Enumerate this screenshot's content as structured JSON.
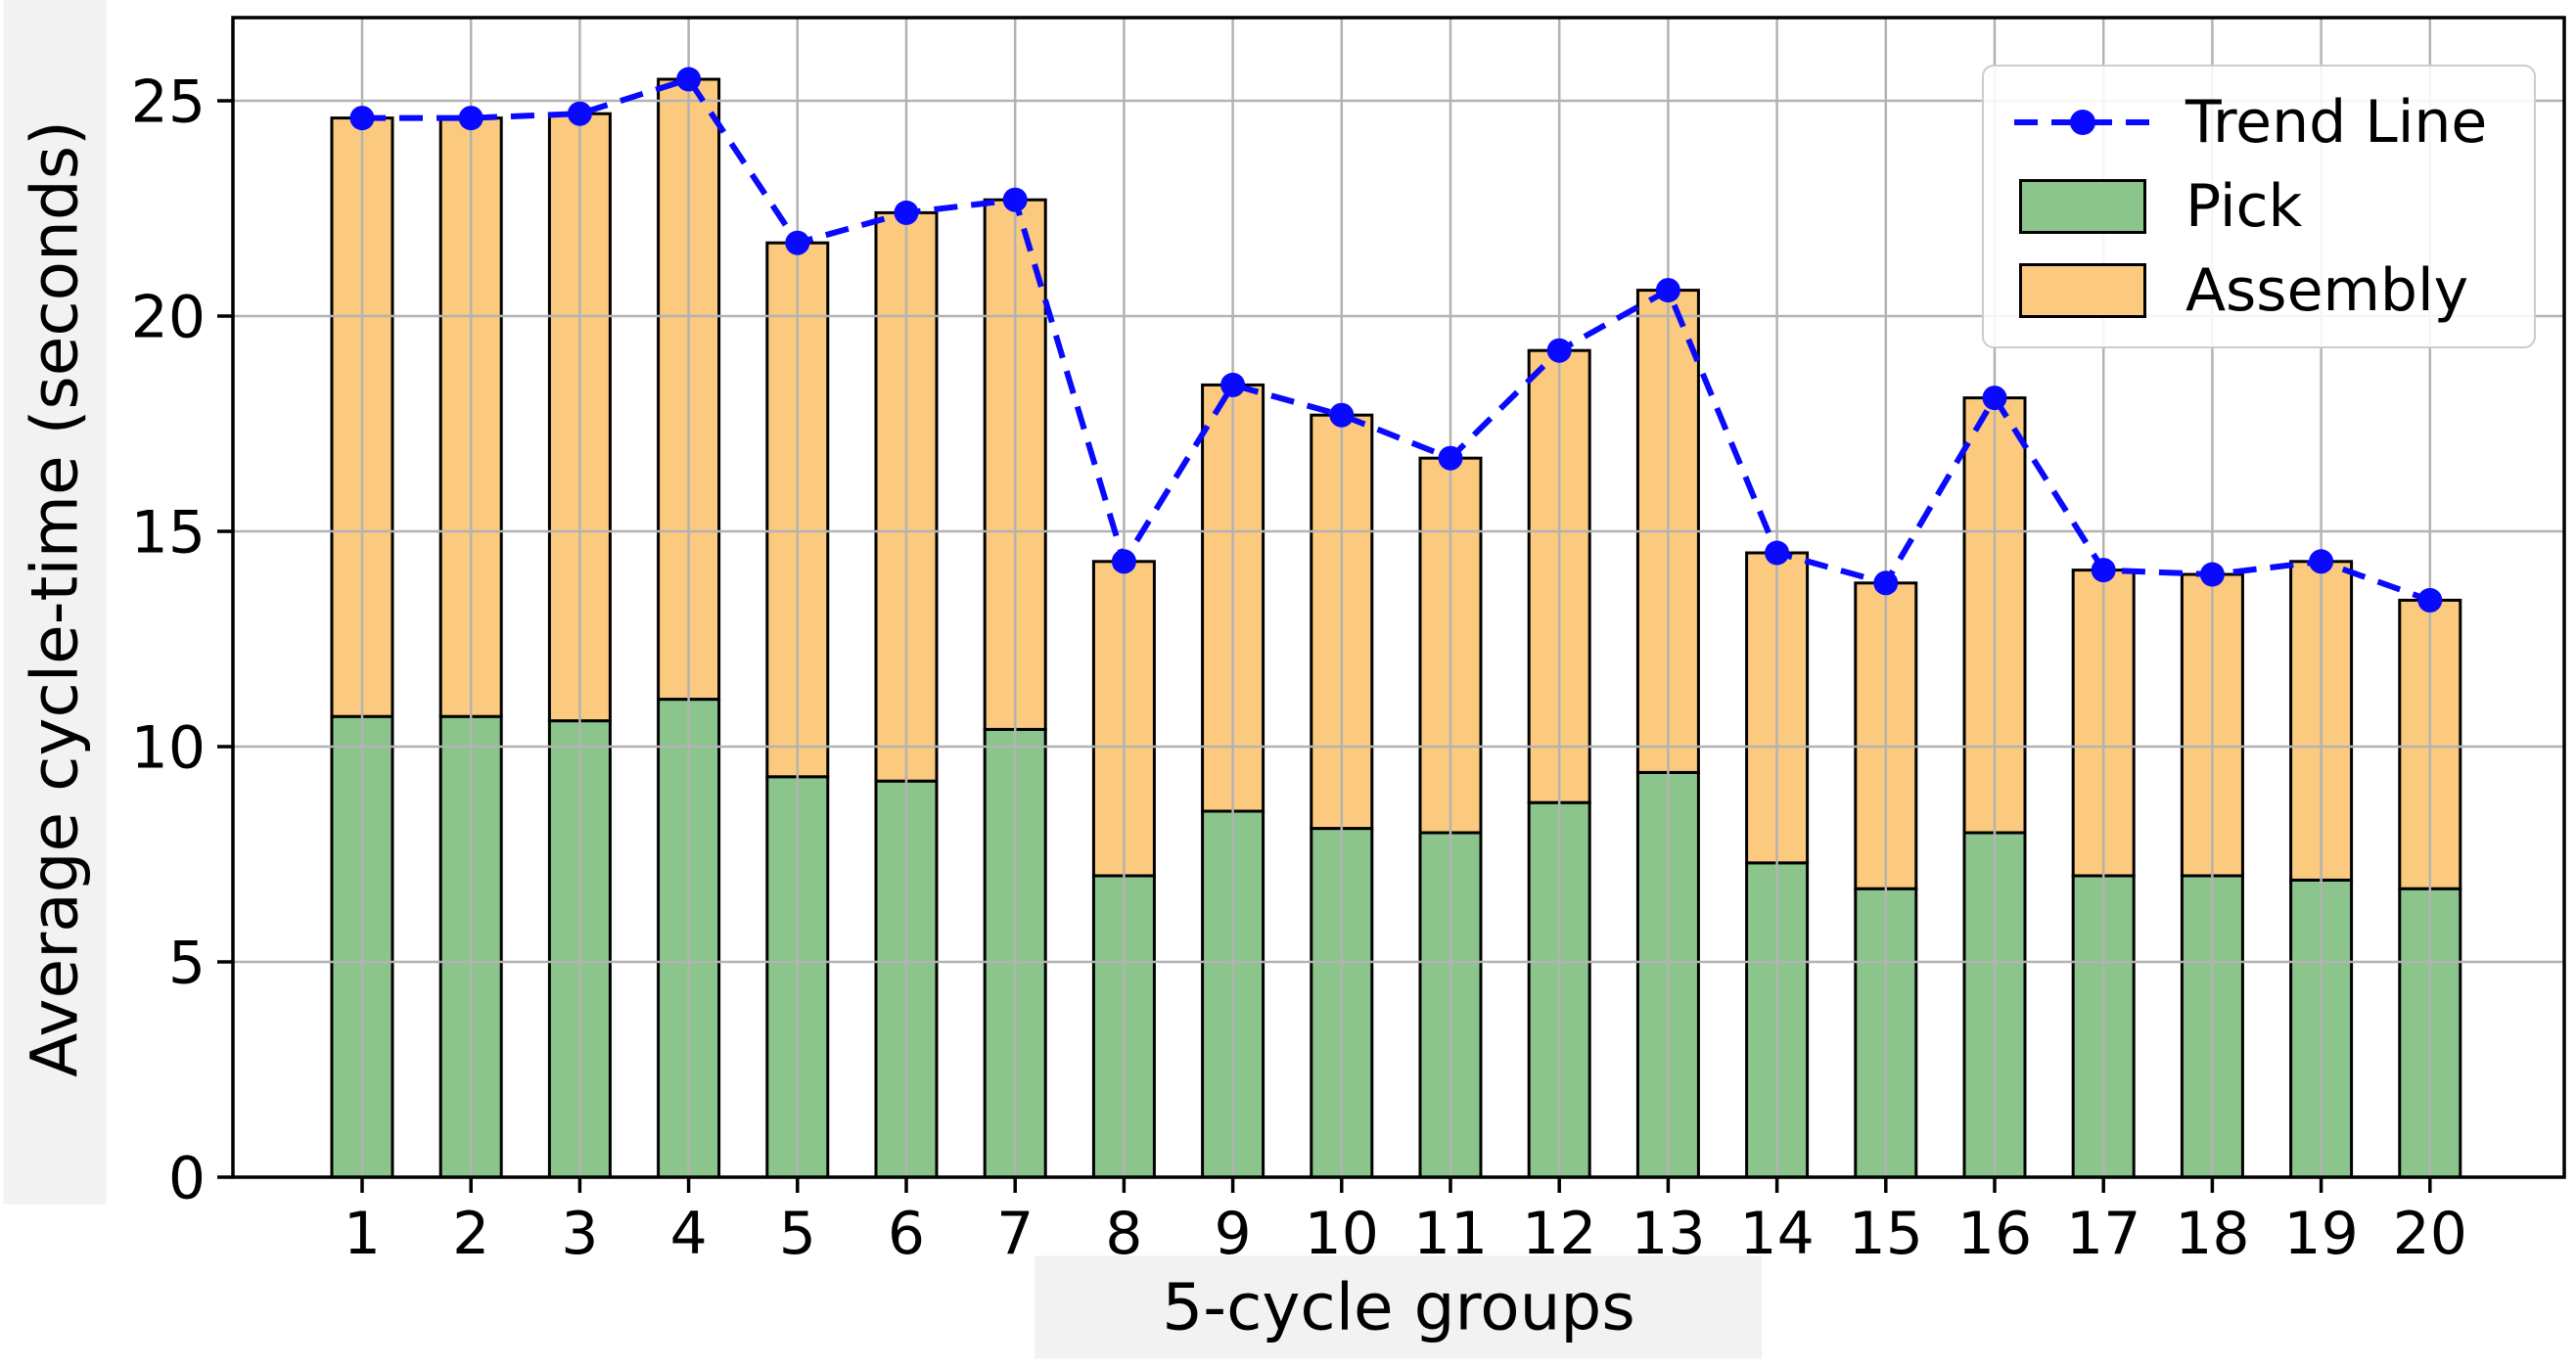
{
  "chart_data": {
    "type": "bar",
    "stacked": true,
    "title": "",
    "xlabel": "5-cycle groups",
    "ylabel": "Average cycle-time (seconds)",
    "categories": [
      "1",
      "2",
      "3",
      "4",
      "5",
      "6",
      "7",
      "8",
      "9",
      "10",
      "11",
      "12",
      "13",
      "14",
      "15",
      "16",
      "17",
      "18",
      "19",
      "20"
    ],
    "series": [
      {
        "name": "Pick",
        "color": "#8CC58C",
        "values": [
          10.7,
          10.7,
          10.6,
          11.1,
          9.3,
          9.2,
          10.4,
          7.0,
          8.5,
          8.1,
          8.0,
          8.7,
          9.4,
          7.3,
          6.7,
          8.0,
          7.0,
          7.0,
          6.9,
          6.7
        ]
      },
      {
        "name": "Assembly",
        "color": "#FBCA7E",
        "values": [
          13.9,
          13.9,
          14.1,
          14.4,
          12.4,
          13.2,
          12.3,
          7.3,
          9.9,
          9.6,
          8.7,
          10.5,
          11.2,
          7.2,
          7.1,
          10.1,
          7.1,
          7.0,
          7.4,
          6.7
        ]
      }
    ],
    "trend_line": {
      "name": "Trend Line",
      "color": "#0909FF",
      "style": "dashed",
      "marker": "circle",
      "values": [
        24.6,
        24.6,
        24.7,
        25.5,
        21.7,
        22.4,
        22.7,
        14.3,
        18.4,
        17.7,
        16.7,
        19.2,
        20.6,
        14.5,
        13.8,
        18.1,
        14.1,
        14.0,
        14.3,
        13.4
      ]
    },
    "yticks": [
      0,
      5,
      10,
      15,
      20,
      25
    ],
    "ylim": [
      0,
      26.9
    ],
    "grid": true,
    "legend_position": "upper right"
  },
  "colors": {
    "grid": "#b3b3b3",
    "spine": "#000000",
    "bar_edge": "#000000",
    "label_bg": "#f2f2f2",
    "legend_border": "#cccccc",
    "background": "#ffffff"
  }
}
